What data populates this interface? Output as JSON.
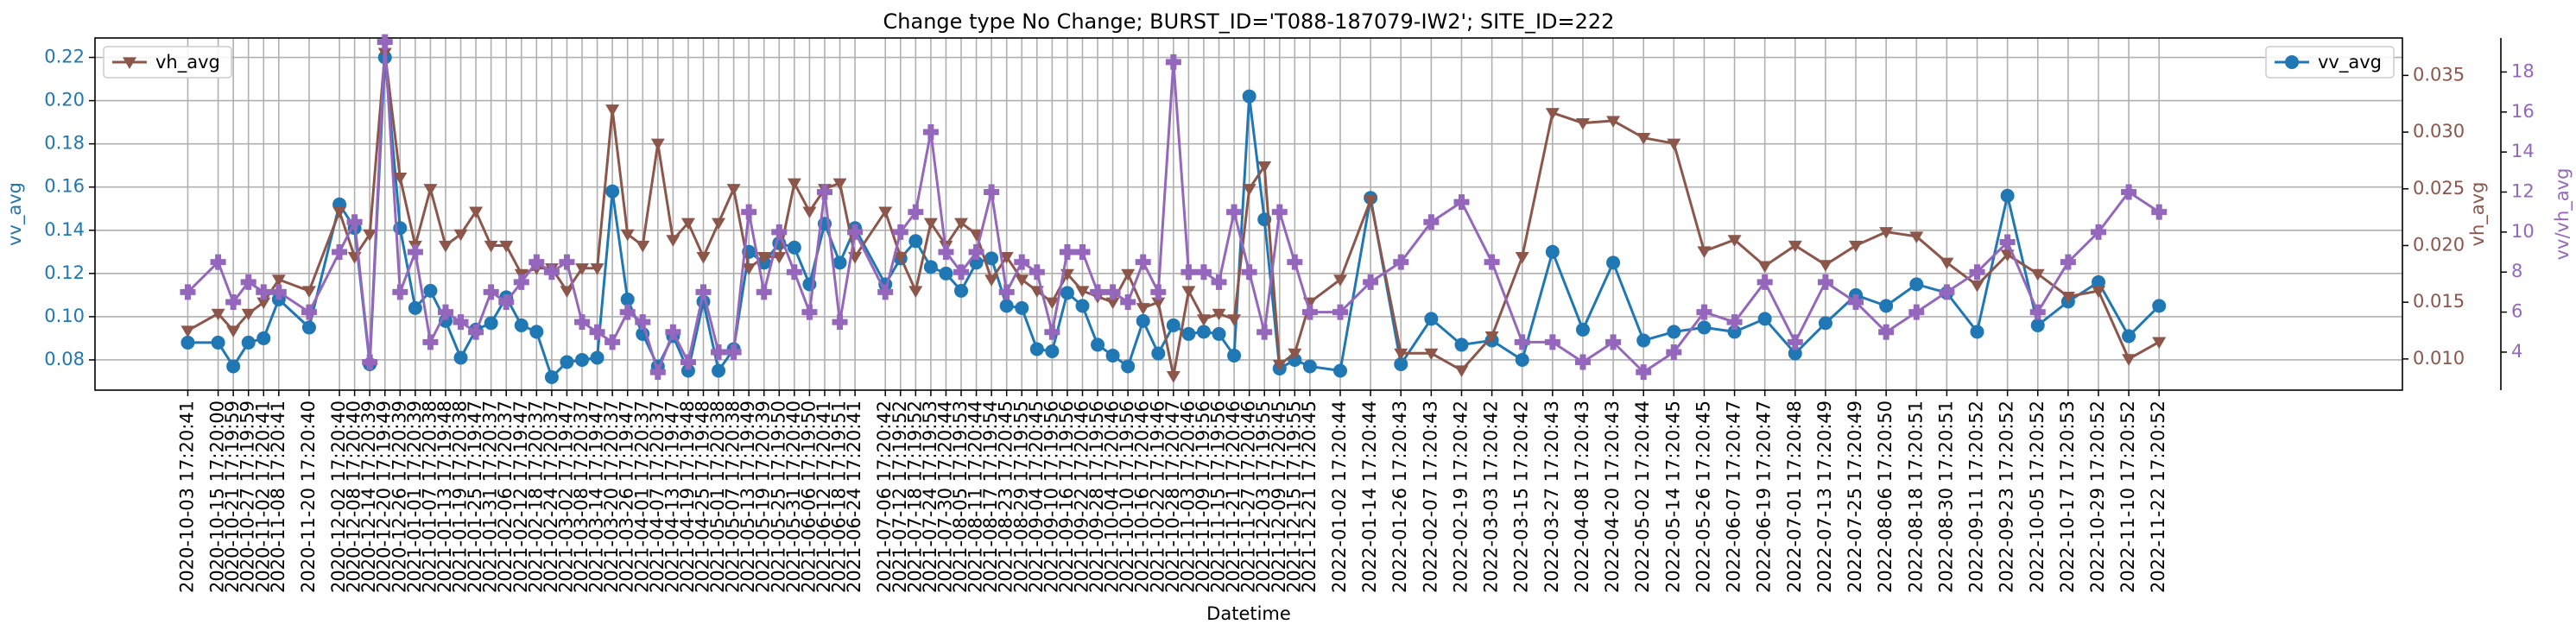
{
  "chart_data": {
    "type": "line",
    "title": "Change type No Change; BURST_ID='T088-187079-IW2'; SITE_ID=222",
    "xlabel": "Datetime",
    "ylabel": "vv_avg",
    "y2label": "vh_avg",
    "y3label": "vv/vh_avg",
    "x": [
      "2020-10-03 17:20:41",
      "2020-10-15 17:20:00",
      "2020-10-21 17:19:59",
      "2020-10-27 17:19:59",
      "2020-11-02 17:20:41",
      "2020-11-08 17:20:41",
      "2020-11-20 17:20:40",
      "2020-12-02 17:20:40",
      "2020-12-08 17:20:40",
      "2020-12-14 17:20:39",
      "2020-12-20 17:19:49",
      "2020-12-26 17:20:39",
      "2021-01-01 17:20:39",
      "2021-01-07 17:20:38",
      "2021-01-13 17:19:48",
      "2021-01-19 17:20:38",
      "2021-01-25 17:19:47",
      "2021-01-31 17:20:37",
      "2021-02-06 17:20:37",
      "2021-02-12 17:19:47",
      "2021-02-18 17:20:37",
      "2021-02-24 17:20:37",
      "2021-03-02 17:19:47",
      "2021-03-08 17:20:37",
      "2021-03-14 17:19:47",
      "2021-03-20 17:20:37",
      "2021-03-26 17:19:47",
      "2021-04-01 17:20:37",
      "2021-04-07 17:20:37",
      "2021-04-13 17:19:47",
      "2021-04-19 17:19:48",
      "2021-04-25 17:19:48",
      "2021-05-01 17:20:38",
      "2021-05-07 17:20:38",
      "2021-05-13 17:19:49",
      "2021-05-19 17:20:39",
      "2021-05-25 17:19:50",
      "2021-05-31 17:20:40",
      "2021-06-06 17:19:50",
      "2021-06-12 17:20:41",
      "2021-06-18 17:19:51",
      "2021-06-24 17:20:41",
      "2021-07-06 17:20:42",
      "2021-07-12 17:19:52",
      "2021-07-18 17:19:52",
      "2021-07-24 17:19:53",
      "2021-07-30 17:20:44",
      "2021-08-05 17:19:53",
      "2021-08-11 17:20:44",
      "2021-08-17 17:19:54",
      "2021-08-23 17:20:45",
      "2021-08-29 17:19:55",
      "2021-09-04 17:20:45",
      "2021-09-10 17:19:56",
      "2021-09-16 17:19:56",
      "2021-09-22 17:20:46",
      "2021-09-28 17:19:56",
      "2021-10-04 17:20:46",
      "2021-10-10 17:19:56",
      "2021-10-16 17:20:46",
      "2021-10-22 17:19:46",
      "2021-10-28 17:20:47",
      "2021-11-03 17:20:46",
      "2021-11-09 17:19:56",
      "2021-11-15 17:19:56",
      "2021-11-21 17:20:46",
      "2021-11-27 17:20:46",
      "2021-12-03 17:19:55",
      "2021-12-09 17:20:45",
      "2021-12-15 17:19:55",
      "2021-12-21 17:20:45",
      "2022-01-02 17:20:44",
      "2022-01-14 17:20:44",
      "2022-01-26 17:20:43",
      "2022-02-07 17:20:43",
      "2022-02-19 17:20:42",
      "2022-03-03 17:20:42",
      "2022-03-15 17:20:42",
      "2022-03-27 17:20:43",
      "2022-04-08 17:20:43",
      "2022-04-20 17:20:43",
      "2022-05-02 17:20:44",
      "2022-05-14 17:20:45",
      "2022-05-26 17:20:45",
      "2022-06-07 17:20:47",
      "2022-06-19 17:20:47",
      "2022-07-01 17:20:48",
      "2022-07-13 17:20:49",
      "2022-07-25 17:20:49",
      "2022-08-06 17:20:50",
      "2022-08-18 17:20:51",
      "2022-08-30 17:20:51",
      "2022-09-11 17:20:52",
      "2022-09-23 17:20:52",
      "2022-10-05 17:20:52",
      "2022-10-17 17:20:53",
      "2022-10-29 17:20:52",
      "2022-11-10 17:20:52",
      "2022-11-22 17:20:52"
    ],
    "xlim": [
      "2020-08-28",
      "2023-02-27"
    ],
    "ylim": [
      0.066,
      0.229
    ],
    "yticks": [
      0.08,
      {
        "value": 0.1,
        "label": "0.10"
      },
      0.12,
      0.14,
      0.16,
      0.18,
      {
        "value": 0.2,
        "label": "0.20"
      },
      0.22
    ],
    "y2lim": [
      0.00725,
      0.0383
    ],
    "y2ticks": [
      {
        "value": 0.01,
        "label": "0.010"
      },
      0.015,
      {
        "value": 0.02,
        "label": "0.020"
      },
      0.025,
      {
        "value": 0.03,
        "label": "0.030"
      },
      0.035
    ],
    "y3lim": [
      2.1,
      19.7
    ],
    "y3ticks": [
      4,
      6,
      8,
      10,
      12,
      14,
      16,
      18
    ],
    "grid": true,
    "series": [
      {
        "name": "vv_avg",
        "color": "#1f77b4",
        "axis": "y",
        "marker": "circle",
        "legend": "upper right",
        "values": [
          0.088,
          0.088,
          0.077,
          0.088,
          0.09,
          0.108,
          0.095,
          0.152,
          0.141,
          0.078,
          0.22,
          0.141,
          0.104,
          0.112,
          0.098,
          0.081,
          0.094,
          0.097,
          0.109,
          0.096,
          0.093,
          0.072,
          0.079,
          0.08,
          0.081,
          0.158,
          0.108,
          0.092,
          0.077,
          0.091,
          0.075,
          0.107,
          0.075,
          0.085,
          0.13,
          0.125,
          0.134,
          0.132,
          0.115,
          0.143,
          0.125,
          0.141,
          0.115,
          0.127,
          0.135,
          0.123,
          0.12,
          0.112,
          0.125,
          0.127,
          0.105,
          0.104,
          0.085,
          0.084,
          0.111,
          0.105,
          0.087,
          0.082,
          0.077,
          0.098,
          0.083,
          0.096,
          0.092,
          0.093,
          0.092,
          0.082,
          0.202,
          0.145,
          0.076,
          0.08,
          0.077,
          0.075,
          0.155,
          0.078,
          0.099,
          0.087,
          0.089,
          0.08,
          0.13,
          0.094,
          0.125,
          0.089,
          0.093,
          0.095,
          0.093,
          0.099,
          0.083,
          0.097,
          0.11,
          0.105,
          0.115,
          0.111,
          0.093,
          0.156,
          0.096,
          0.107,
          0.116,
          0.091,
          0.105
        ]
      },
      {
        "name": "vh_avg",
        "color": "#8c564b",
        "axis": "y2",
        "marker": "triangle-down",
        "legend": "upper left",
        "values": [
          0.0125,
          0.014,
          0.0125,
          0.014,
          0.015,
          0.017,
          0.016,
          0.023,
          0.019,
          0.021,
          0.037,
          0.026,
          0.02,
          0.025,
          0.02,
          0.021,
          0.023,
          0.02,
          0.02,
          0.0175,
          0.018,
          0.018,
          0.016,
          0.018,
          0.018,
          0.032,
          0.021,
          0.02,
          0.029,
          0.0205,
          0.022,
          0.019,
          0.022,
          0.025,
          0.018,
          0.019,
          0.019,
          0.0255,
          0.023,
          0.025,
          0.0255,
          0.019,
          0.023,
          0.019,
          0.016,
          0.022,
          0.02,
          0.022,
          0.021,
          0.017,
          0.019,
          0.017,
          0.016,
          0.015,
          0.0175,
          0.016,
          0.0155,
          0.015,
          0.0175,
          0.0145,
          0.015,
          0.0085,
          0.016,
          0.0135,
          0.014,
          0.0135,
          0.025,
          0.027,
          0.0095,
          0.0105,
          0.015,
          0.017,
          0.024,
          0.0105,
          0.0105,
          0.009,
          0.012,
          0.019,
          0.0317,
          0.0308,
          0.031,
          0.0295,
          0.029,
          0.0195,
          0.0205,
          0.0182,
          0.02,
          0.0183,
          0.02,
          0.0212,
          0.0208,
          0.0185,
          0.0165,
          0.0192,
          0.0175,
          0.0155,
          0.016,
          0.01,
          0.0115
        ]
      },
      {
        "name": "vv/vh_avg",
        "color": "#9467bd",
        "axis": "y3",
        "marker": "plus",
        "values": [
          7.0,
          8.5,
          6.5,
          7.5,
          7.0,
          7.0,
          6.0,
          9.0,
          10.5,
          3.5,
          19.5,
          7.0,
          9.0,
          4.5,
          6.0,
          5.5,
          5.0,
          7.0,
          6.5,
          7.5,
          8.5,
          8.0,
          8.5,
          5.5,
          5.0,
          4.5,
          6.0,
          5.5,
          3.0,
          5.0,
          3.5,
          7.0,
          4.0,
          4.0,
          11.0,
          7.0,
          10.0,
          8.0,
          6.0,
          12.0,
          5.5,
          10.0,
          7.0,
          10.0,
          11.0,
          15.0,
          9.0,
          8.0,
          9.0,
          12.0,
          7.0,
          8.5,
          8.0,
          5.0,
          9.0,
          9.0,
          7.0,
          7.0,
          6.5,
          8.5,
          7.0,
          18.5,
          8.0,
          8.0,
          7.5,
          11.0,
          8.0,
          5.0,
          11.0,
          8.5,
          6.0,
          6.0,
          7.5,
          8.5,
          10.5,
          11.5,
          8.5,
          4.5,
          4.5,
          3.5,
          4.5,
          3.0,
          4.0,
          6.0,
          5.5,
          7.5,
          4.5,
          7.5,
          6.5,
          5.0,
          6.0,
          7.0,
          8.0,
          9.5,
          6.0,
          8.5,
          10.0,
          12.0,
          11.0
        ]
      }
    ]
  }
}
